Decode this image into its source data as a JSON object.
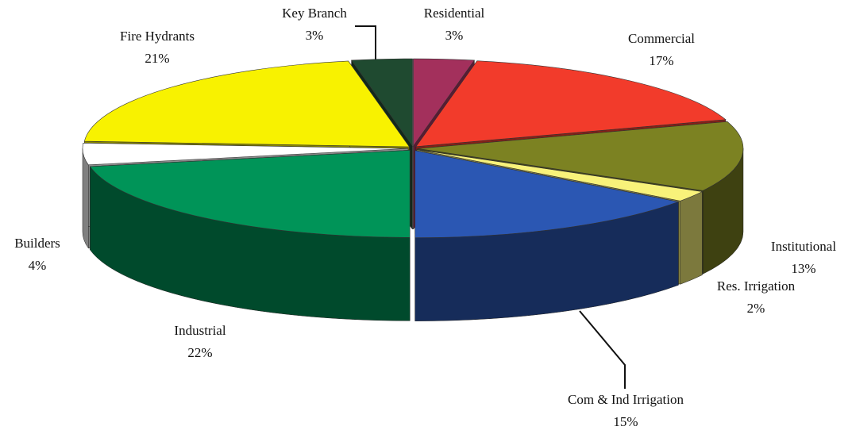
{
  "chart_data": {
    "type": "pie",
    "categories": [
      "Residential",
      "Commercial",
      "Institutional",
      "Res. Irrigation",
      "Com & Ind Irrigation",
      "Industrial",
      "Builders",
      "Fire Hydrants",
      "Key Branch"
    ],
    "values": [
      3,
      17,
      13,
      2,
      15,
      22,
      4,
      21,
      3
    ],
    "value_labels": [
      "3%",
      "17%",
      "13%",
      "2%",
      "15%",
      "22%",
      "4%",
      "21%",
      "3%"
    ],
    "colors": [
      "#a3305c",
      "#f23b2b",
      "#7c8222",
      "#f8f27a",
      "#2b57b3",
      "#009458",
      "#ffffff",
      "#f8f200",
      "#1f4a30"
    ]
  }
}
